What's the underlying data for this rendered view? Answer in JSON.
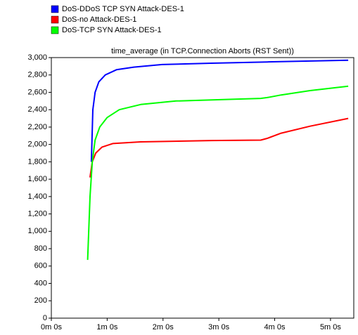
{
  "chart_data": {
    "type": "line",
    "title": "time_average (in TCP.Connection Aborts (RST Sent))",
    "xlim": [
      0,
      325
    ],
    "xticks": [
      {
        "value": 0,
        "label": "0m 0s"
      },
      {
        "value": 60,
        "label": "1m 0s"
      },
      {
        "value": 120,
        "label": "2m 0s"
      },
      {
        "value": 180,
        "label": "3m 0s"
      },
      {
        "value": 240,
        "label": "4m 0s"
      },
      {
        "value": 300,
        "label": "5m 0s"
      }
    ],
    "ylim": [
      0,
      3000
    ],
    "yticks": [
      0,
      200,
      400,
      600,
      800,
      {
        "value": 1000,
        "label": "1,000"
      },
      {
        "value": 1200,
        "label": "1,200"
      },
      {
        "value": 1400,
        "label": "1,400"
      },
      {
        "value": 1600,
        "label": "1,600"
      },
      {
        "value": 1800,
        "label": "1,800"
      },
      {
        "value": 2000,
        "label": "2,000"
      },
      {
        "value": 2200,
        "label": "2,200"
      },
      {
        "value": 2400,
        "label": "2,400"
      },
      {
        "value": 2600,
        "label": "2,600"
      },
      {
        "value": 2800,
        "label": "2,800"
      },
      {
        "value": 3000,
        "label": "3,000"
      }
    ],
    "series": [
      {
        "name": "DoS-DDoS TCP SYN Attack-DES-1",
        "color": "#0000ff",
        "x": [
          43,
          44.6,
          47,
          51,
          58,
          70,
          88.5,
          119,
          172,
          232,
          278,
          319
        ],
        "values": [
          1800,
          2400,
          2600,
          2720,
          2800,
          2860,
          2890,
          2920,
          2935,
          2950,
          2960,
          2970
        ]
      },
      {
        "name": "DoS-no Attack-DES-1",
        "color": "#ff0000",
        "x": [
          41.6,
          44,
          47.7,
          54.5,
          66,
          96,
          172,
          225,
          232,
          247,
          278,
          319
        ],
        "values": [
          1620,
          1800,
          1900,
          1970,
          2010,
          2030,
          2045,
          2050,
          2070,
          2130,
          2210,
          2300
        ]
      },
      {
        "name": "DoS-TCP SYN Attack-DES-1",
        "color": "#00ff00",
        "x": [
          39,
          41.6,
          44,
          47,
          52,
          60,
          73,
          96,
          134,
          194,
          225,
          232,
          247,
          278,
          319
        ],
        "values": [
          670,
          1400,
          1800,
          2050,
          2200,
          2310,
          2400,
          2460,
          2500,
          2520,
          2530,
          2540,
          2570,
          2620,
          2670
        ]
      }
    ]
  }
}
